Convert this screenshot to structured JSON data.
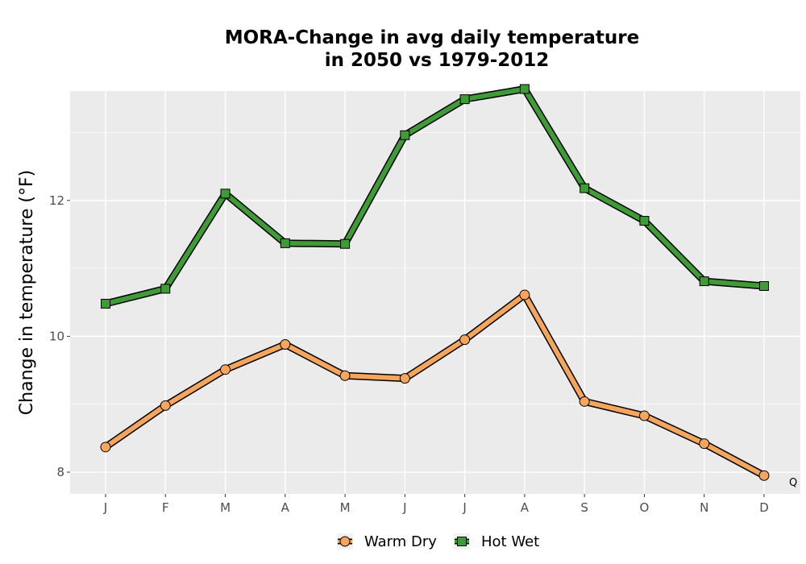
{
  "chart_data": {
    "type": "line",
    "title_line1": "MORA-Change in avg daily temperature",
    "title_line2": "in 2050 vs 1979-2012",
    "xlabel": "",
    "ylabel": "Change in temperature (°F)",
    "categories": [
      "J",
      "F",
      "M",
      "A",
      "M",
      "J",
      "J",
      "A",
      "S",
      "O",
      "N",
      "D"
    ],
    "y_ticks": [
      8,
      10,
      12
    ],
    "ylim": [
      7.68,
      13.61
    ],
    "grid": true,
    "legend_position": "bottom",
    "corner_note": "Q",
    "series": [
      {
        "name": "Warm Dry",
        "color": "#F6A55C",
        "marker": "circle",
        "values": [
          8.37,
          8.98,
          9.51,
          9.88,
          9.42,
          9.38,
          9.95,
          10.61,
          9.04,
          8.83,
          8.42,
          7.95
        ]
      },
      {
        "name": "Hot Wet",
        "color": "#3F9B35",
        "marker": "square",
        "values": [
          10.48,
          10.7,
          12.1,
          11.37,
          11.36,
          12.96,
          13.49,
          13.64,
          12.18,
          11.7,
          10.81,
          10.74
        ]
      }
    ]
  }
}
